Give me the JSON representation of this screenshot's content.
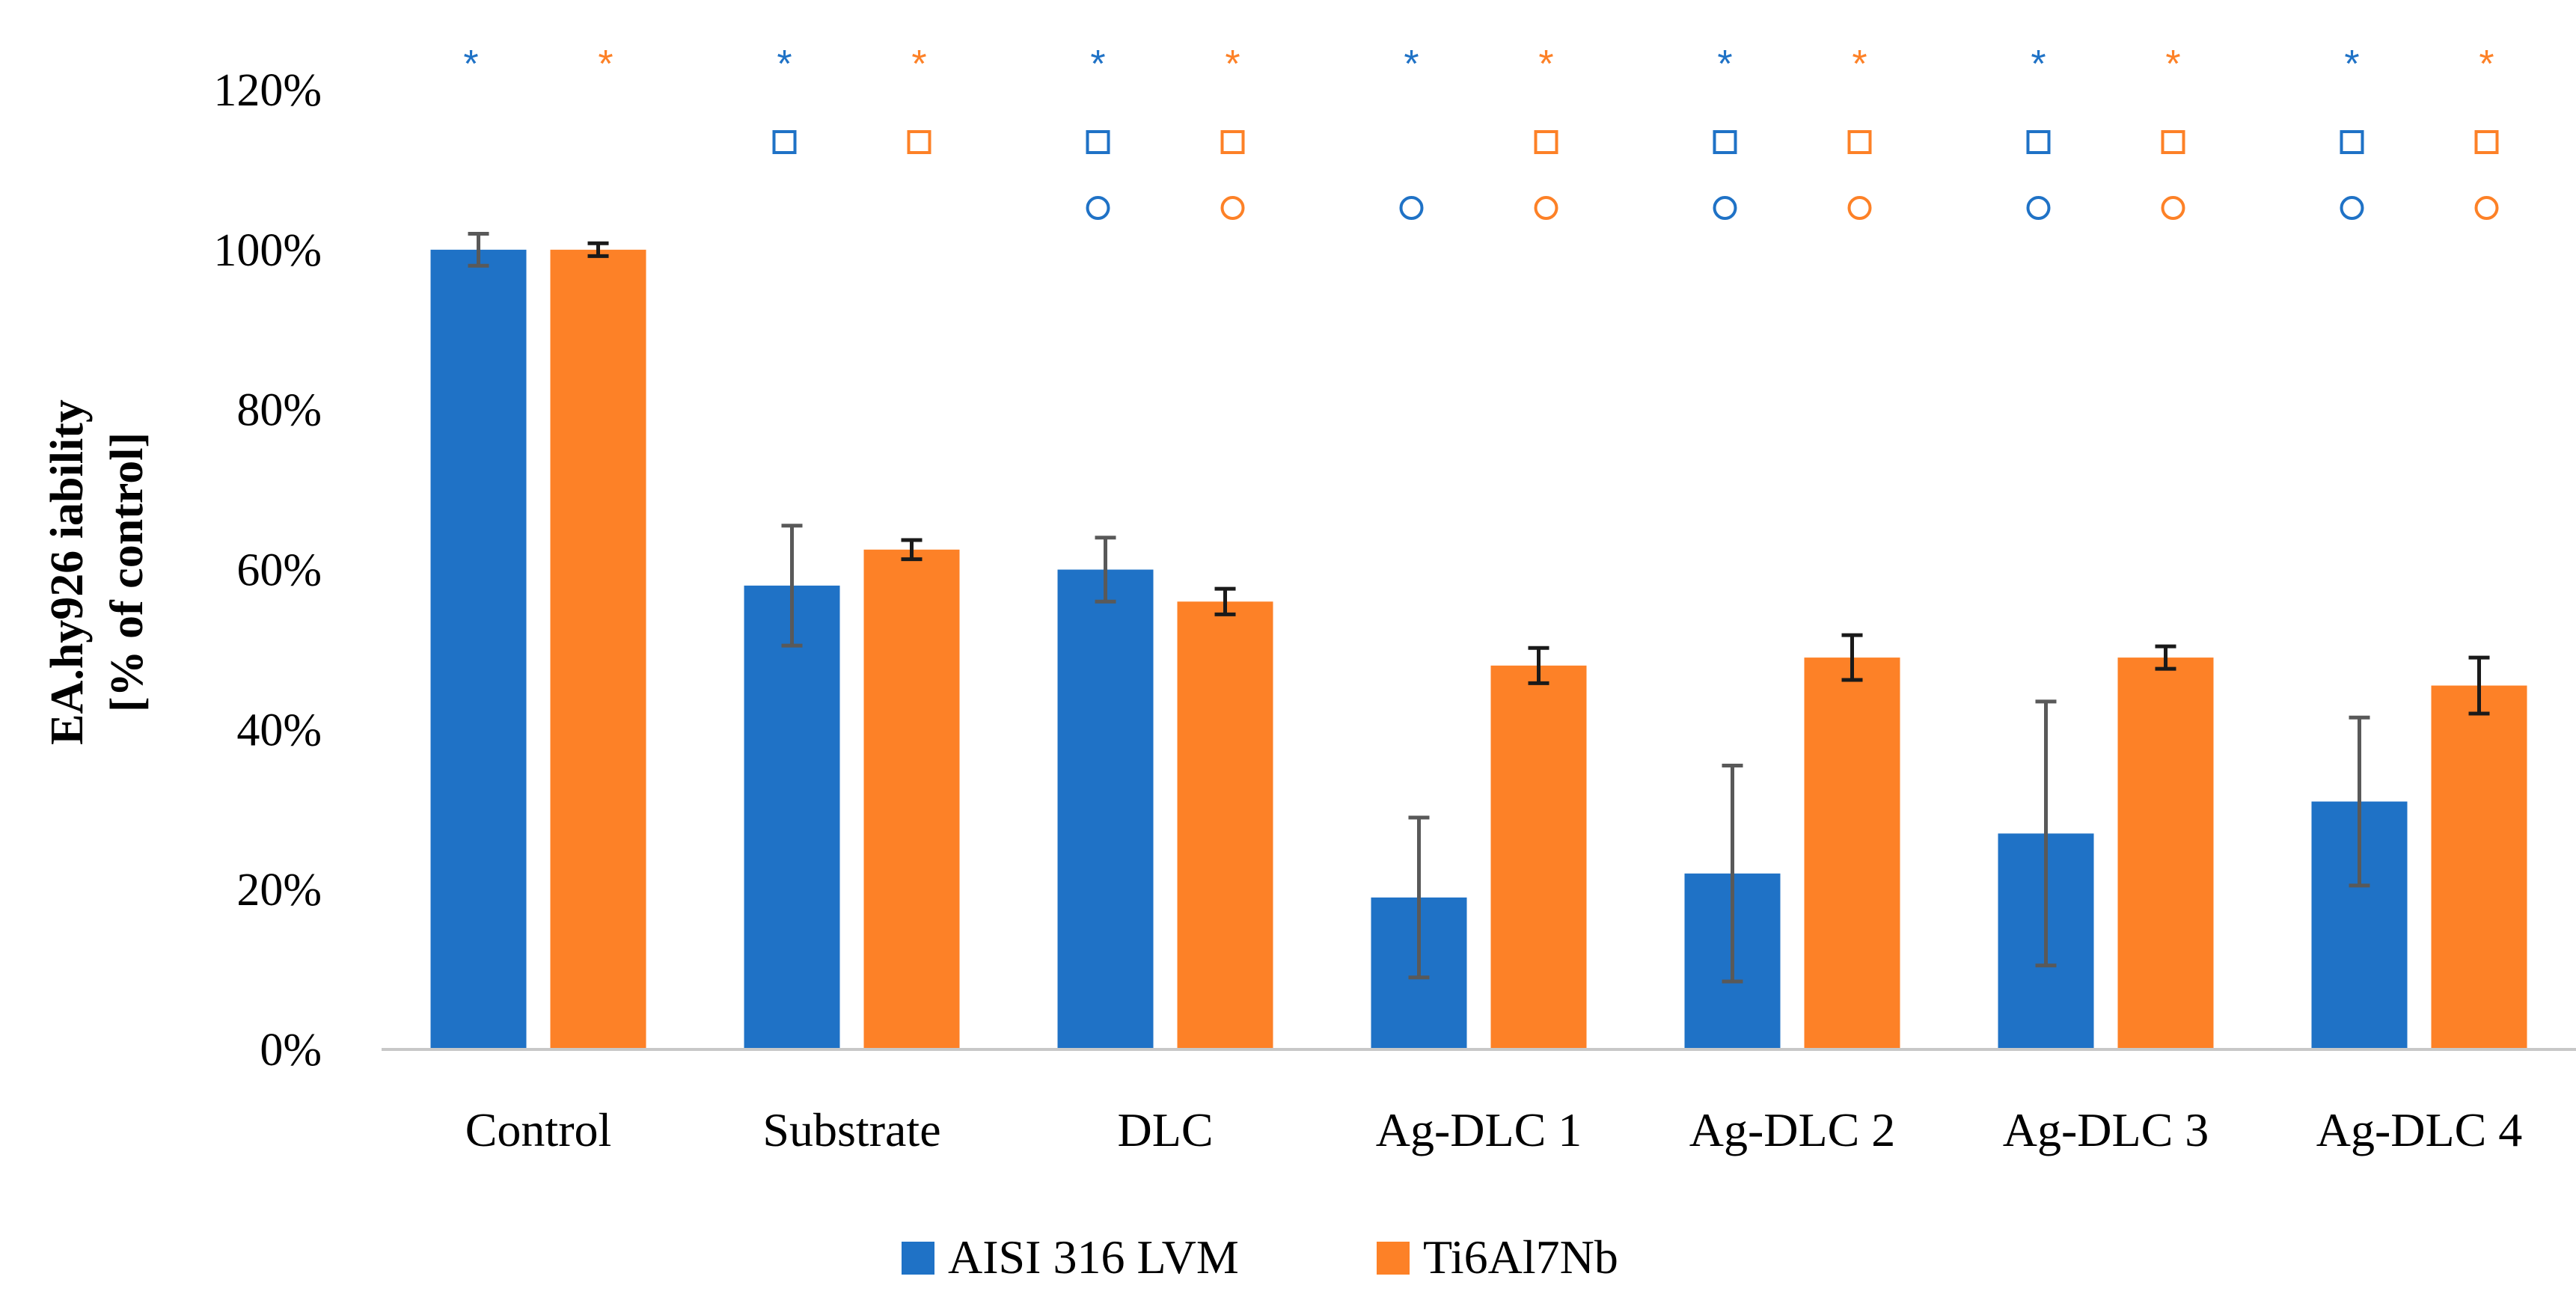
{
  "chart_data": {
    "type": "bar",
    "title": "",
    "xlabel": "",
    "ylabel_line1": "EA.hy926 iability",
    "ylabel_line2": "[% of control]",
    "ylim": [
      0,
      1.2
    ],
    "yticks": [
      0,
      0.2,
      0.4,
      0.6,
      0.8,
      1.0,
      1.2
    ],
    "ytick_labels": [
      "0%",
      "20%",
      "40%",
      "60%",
      "80%",
      "100%",
      "120%"
    ],
    "grid": false,
    "legend_position": "bottom",
    "categories": [
      "Control",
      "Substrate",
      "DLC",
      "Ag-DLC 1",
      "Ag-DLC 2",
      "Ag-DLC 3",
      "Ag-DLC 4"
    ],
    "series": [
      {
        "name": "AISI 316 LVM",
        "color": "#1f72c6",
        "values": [
          1.0,
          0.58,
          0.6,
          0.19,
          0.22,
          0.27,
          0.31
        ],
        "errors": [
          0.02,
          0.075,
          0.04,
          0.1,
          0.135,
          0.165,
          0.105
        ],
        "error_color": "#595959",
        "sig_star": [
          true,
          true,
          true,
          true,
          true,
          true,
          true
        ],
        "sig_square": [
          false,
          true,
          true,
          false,
          true,
          true,
          true
        ],
        "sig_circle": [
          false,
          false,
          true,
          true,
          true,
          true,
          true
        ]
      },
      {
        "name": "Ti6Al7Nb",
        "color": "#fd8127",
        "values": [
          1.0,
          0.625,
          0.56,
          0.48,
          0.49,
          0.49,
          0.455
        ],
        "errors": [
          0.008,
          0.012,
          0.016,
          0.022,
          0.028,
          0.014,
          0.035
        ],
        "error_color": "#1a1a1a",
        "sig_star": [
          true,
          true,
          true,
          true,
          true,
          true,
          true
        ],
        "sig_square": [
          false,
          true,
          true,
          true,
          true,
          true,
          true
        ],
        "sig_circle": [
          false,
          false,
          true,
          true,
          true,
          true,
          true
        ]
      }
    ],
    "significance_symbols": {
      "star": "*",
      "square": "□",
      "circle": "○"
    }
  }
}
